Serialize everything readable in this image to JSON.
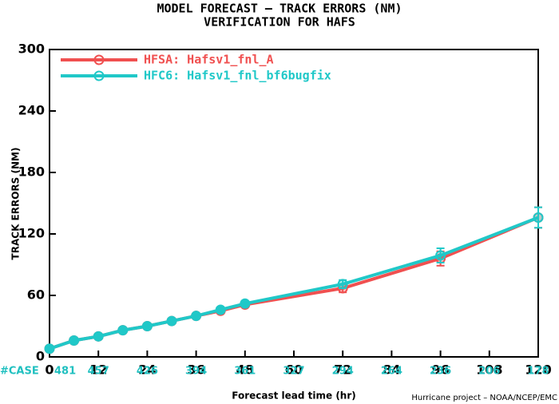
{
  "chart_data": {
    "type": "line",
    "title": "MODEL FORECAST – TRACK ERRORS (NM)",
    "subtitle": "VERIFICATION FOR HAFS",
    "y_label": "TRACK ERRORS (NM)",
    "x_label": "Forecast lead time (hr)",
    "credit": "Hurricane project – NOAA/NCEP/EMC",
    "x": [
      0,
      6,
      12,
      18,
      24,
      30,
      36,
      42,
      48,
      72,
      96,
      120
    ],
    "series": [
      {
        "name": "HFSA: Hafsv1_fnl_A",
        "color": "#f05050",
        "values": [
          8,
          16,
          20,
          26,
          30,
          35,
          40,
          45,
          51,
          67,
          96,
          136
        ],
        "errors": [
          null,
          null,
          null,
          null,
          null,
          null,
          null,
          null,
          null,
          4,
          7,
          10
        ]
      },
      {
        "name": "HFC6: Hafsv1_fnl_bf6bugfix",
        "color": "#20c8c8",
        "values": [
          8,
          16,
          20,
          26,
          30,
          35,
          40,
          46,
          52,
          71,
          99,
          136
        ],
        "errors": [
          null,
          null,
          null,
          null,
          null,
          null,
          null,
          null,
          null,
          4,
          7,
          10
        ]
      }
    ],
    "xlim": [
      0,
      120
    ],
    "xticks": [
      0,
      12,
      24,
      36,
      48,
      60,
      72,
      84,
      96,
      108,
      120
    ],
    "ylim": [
      0,
      300
    ],
    "yticks": [
      0,
      60,
      120,
      180,
      240,
      300
    ],
    "cases": {
      "label": "#CASE",
      "values": [
        481,
        457,
        426,
        394,
        361,
        327,
        294,
        264,
        236,
        206,
        178
      ]
    },
    "legend": "upper left"
  }
}
